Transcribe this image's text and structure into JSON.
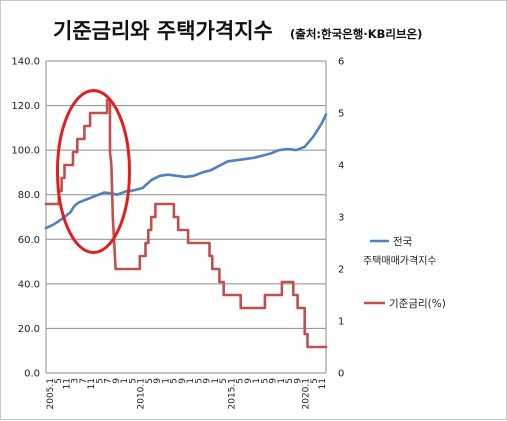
{
  "chart_data": {
    "type": "line",
    "title": "기준금리와 주택가격지수",
    "subtitle": "(출처:한국은행·KB리브온)",
    "x_tick_labels": [
      "2005.1",
      "5",
      "11",
      "3",
      "7",
      "11",
      "5",
      "7",
      "9",
      "1",
      "5",
      "2010.1",
      "5",
      "9",
      "1",
      "5",
      "9",
      "1",
      "5",
      "9",
      "1",
      "5",
      "2015.1",
      "5",
      "9",
      "1",
      "5",
      "9",
      "1",
      "5",
      "9",
      "2020.1",
      "5",
      "11"
    ],
    "y_left": {
      "range": [
        0,
        140
      ],
      "ticks": [
        "0.0",
        "20.0",
        "40.0",
        "60.0",
        "80.0",
        "100.0",
        "120.0",
        "140.0"
      ]
    },
    "y_right": {
      "range": [
        0,
        6
      ],
      "ticks": [
        "0",
        "1",
        "2",
        "3",
        "4",
        "5",
        "6"
      ]
    },
    "grid": true,
    "legend_position": "right",
    "series": [
      {
        "name": "전국",
        "name_line2": "주택매매가격지수",
        "axis": "left",
        "color": "#4f81bd",
        "points": [
          [
            "2005-01",
            65.0
          ],
          [
            "2005-06",
            66.5
          ],
          [
            "2005-12",
            69.0
          ],
          [
            "2006-06",
            72.0
          ],
          [
            "2006-09",
            75.0
          ],
          [
            "2006-12",
            76.5
          ],
          [
            "2007-06",
            78.0
          ],
          [
            "2007-12",
            79.5
          ],
          [
            "2008-06",
            81.0
          ],
          [
            "2008-12",
            80.5
          ],
          [
            "2009-03",
            80.0
          ],
          [
            "2009-09",
            81.5
          ],
          [
            "2010-03",
            82.0
          ],
          [
            "2010-09",
            83.0
          ],
          [
            "2011-03",
            86.5
          ],
          [
            "2011-09",
            88.5
          ],
          [
            "2012-03",
            89.0
          ],
          [
            "2012-09",
            88.5
          ],
          [
            "2013-03",
            88.0
          ],
          [
            "2013-09",
            88.5
          ],
          [
            "2014-03",
            90.0
          ],
          [
            "2014-09",
            91.0
          ],
          [
            "2015-03",
            93.0
          ],
          [
            "2015-09",
            95.0
          ],
          [
            "2016-03",
            95.5
          ],
          [
            "2016-09",
            96.0
          ],
          [
            "2017-03",
            96.5
          ],
          [
            "2017-09",
            97.5
          ],
          [
            "2018-03",
            98.5
          ],
          [
            "2018-09",
            100.0
          ],
          [
            "2019-03",
            100.5
          ],
          [
            "2019-09",
            100.0
          ],
          [
            "2020-03",
            101.5
          ],
          [
            "2020-09",
            106.0
          ],
          [
            "2021-03",
            112.0
          ],
          [
            "2021-06",
            116.0
          ]
        ]
      },
      {
        "name": "기준금리(%)",
        "axis": "right",
        "color": "#c0504d",
        "points": [
          [
            "2005-01",
            3.25
          ],
          [
            "2005-10",
            3.25
          ],
          [
            "2005-10",
            3.5
          ],
          [
            "2005-12",
            3.5
          ],
          [
            "2005-12",
            3.75
          ],
          [
            "2006-02",
            3.75
          ],
          [
            "2006-02",
            4.0
          ],
          [
            "2006-08",
            4.0
          ],
          [
            "2006-08",
            4.25
          ],
          [
            "2006-11",
            4.25
          ],
          [
            "2006-11",
            4.5
          ],
          [
            "2007-04",
            4.5
          ],
          [
            "2007-04",
            4.75
          ],
          [
            "2007-08",
            4.75
          ],
          [
            "2007-08",
            5.0
          ],
          [
            "2008-08",
            5.0
          ],
          [
            "2008-08",
            5.25
          ],
          [
            "2008-10",
            5.25
          ],
          [
            "2008-10",
            4.25
          ],
          [
            "2008-11",
            4.0
          ],
          [
            "2008-12",
            3.0
          ],
          [
            "2009-01",
            2.5
          ],
          [
            "2009-02",
            2.0
          ],
          [
            "2010-07",
            2.0
          ],
          [
            "2010-07",
            2.25
          ],
          [
            "2010-11",
            2.25
          ],
          [
            "2010-11",
            2.5
          ],
          [
            "2011-01",
            2.5
          ],
          [
            "2011-01",
            2.75
          ],
          [
            "2011-03",
            2.75
          ],
          [
            "2011-03",
            3.0
          ],
          [
            "2011-06",
            3.0
          ],
          [
            "2011-06",
            3.25
          ],
          [
            "2012-07",
            3.25
          ],
          [
            "2012-07",
            3.0
          ],
          [
            "2012-10",
            3.0
          ],
          [
            "2012-10",
            2.75
          ],
          [
            "2013-05",
            2.75
          ],
          [
            "2013-05",
            2.5
          ],
          [
            "2014-08",
            2.5
          ],
          [
            "2014-08",
            2.25
          ],
          [
            "2014-10",
            2.25
          ],
          [
            "2014-10",
            2.0
          ],
          [
            "2015-03",
            2.0
          ],
          [
            "2015-03",
            1.75
          ],
          [
            "2015-06",
            1.75
          ],
          [
            "2015-06",
            1.5
          ],
          [
            "2016-06",
            1.5
          ],
          [
            "2016-06",
            1.25
          ],
          [
            "2017-11",
            1.25
          ],
          [
            "2017-11",
            1.5
          ],
          [
            "2018-11",
            1.5
          ],
          [
            "2018-11",
            1.75
          ],
          [
            "2019-07",
            1.75
          ],
          [
            "2019-07",
            1.5
          ],
          [
            "2019-10",
            1.5
          ],
          [
            "2019-10",
            1.25
          ],
          [
            "2020-03",
            1.25
          ],
          [
            "2020-03",
            0.75
          ],
          [
            "2020-05",
            0.75
          ],
          [
            "2020-05",
            0.5
          ],
          [
            "2021-06",
            0.5
          ]
        ]
      }
    ],
    "annotation": {
      "shape": "ellipse",
      "color": "#e02020"
    }
  }
}
